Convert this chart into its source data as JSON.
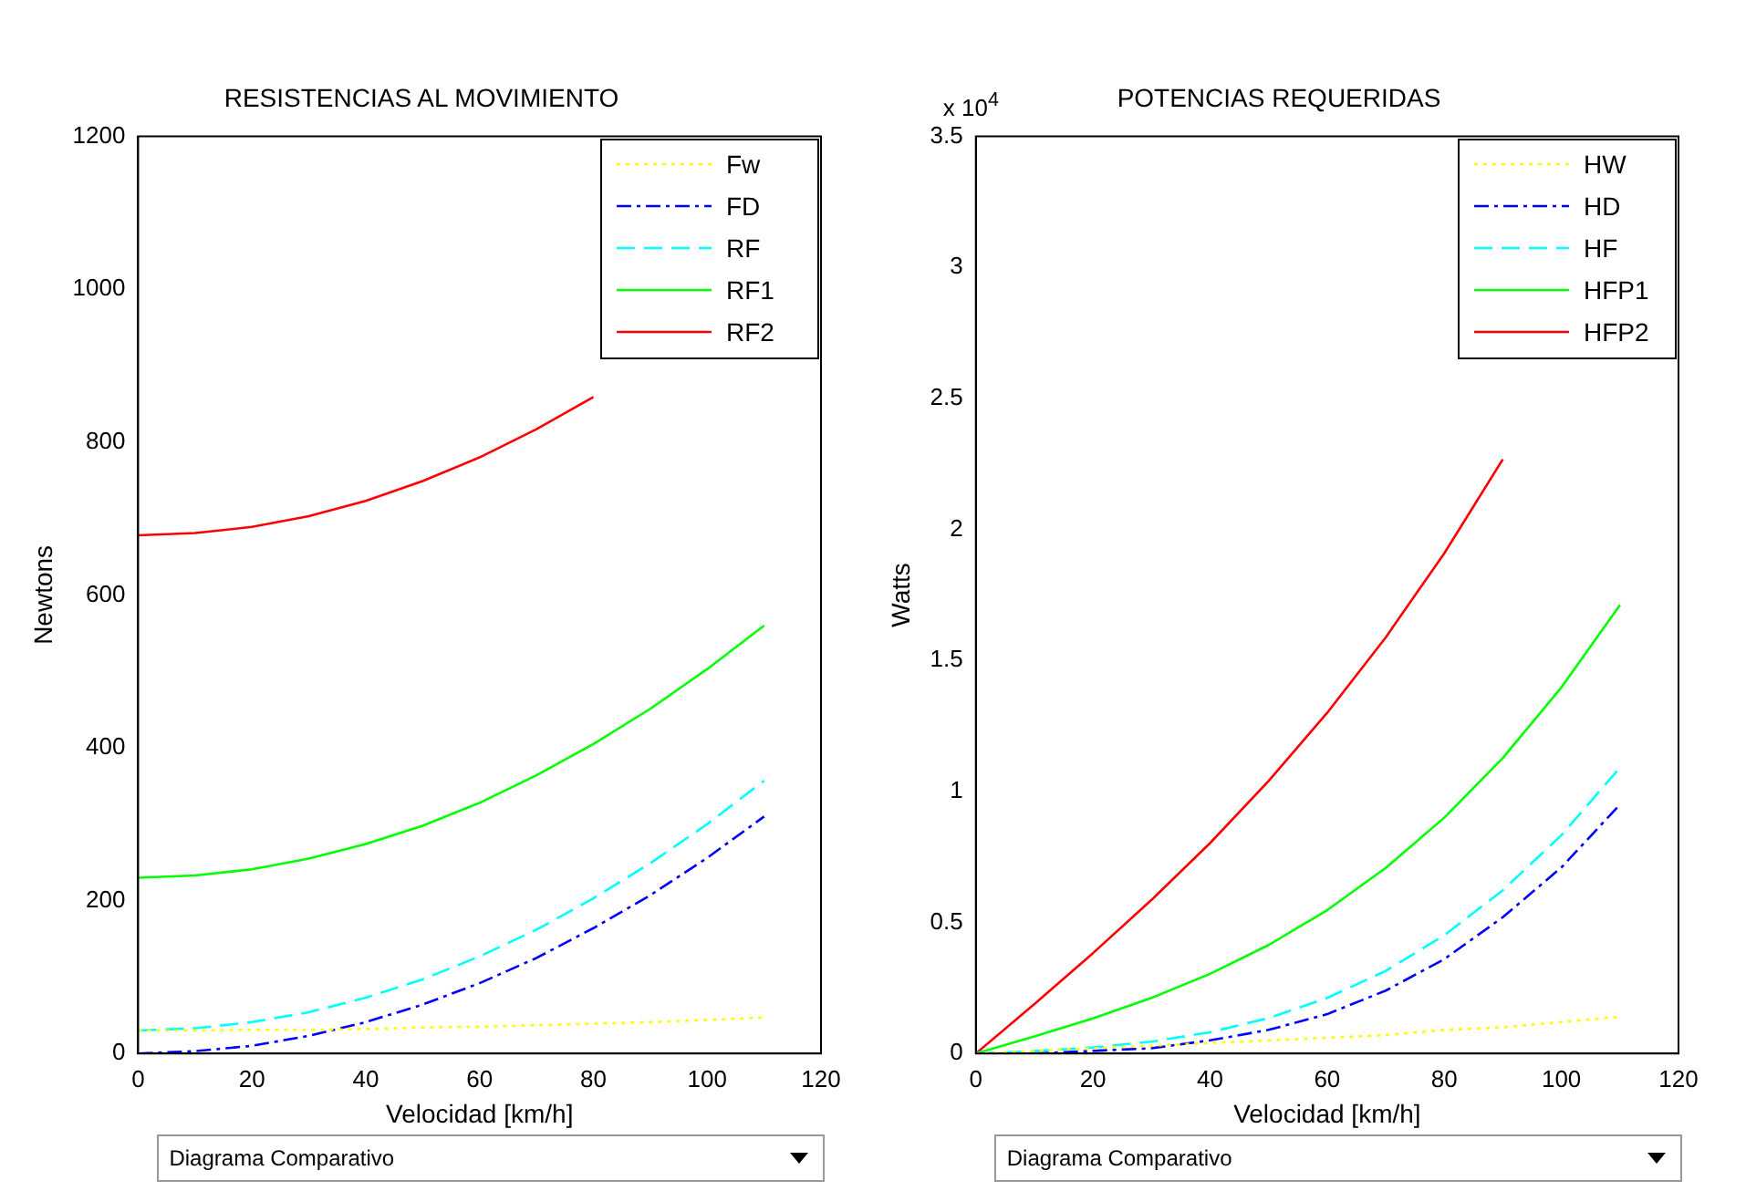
{
  "chart_data": [
    {
      "type": "line",
      "title": "RESISTENCIAS AL MOVIMIENTO",
      "xlabel": "Velocidad [km/h]",
      "ylabel": "Newtons",
      "x": [
        0,
        10,
        20,
        30,
        40,
        50,
        60,
        70,
        80,
        90,
        100,
        110
      ],
      "series": [
        {
          "name": "Fw",
          "color": "#ffff00",
          "line_style": "dotted",
          "values": [
            30,
            30,
            31,
            31,
            32,
            34,
            35,
            37,
            39,
            41,
            44,
            47
          ]
        },
        {
          "name": "FD",
          "color": "#0000ff",
          "line_style": "dashdot",
          "values": [
            0,
            3,
            10,
            23,
            41,
            64,
            92,
            125,
            164,
            207,
            256,
            310
          ]
        },
        {
          "name": "RF",
          "color": "#00ffff",
          "line_style": "dashed",
          "values": [
            30,
            33,
            41,
            54,
            73,
            97,
            127,
            162,
            203,
            249,
            300,
            357
          ]
        },
        {
          "name": "RF1",
          "color": "#00ff00",
          "line_style": "solid",
          "values": [
            230,
            233,
            241,
            255,
            274,
            298,
            328,
            364,
            405,
            451,
            503,
            560
          ]
        },
        {
          "name": "RF2",
          "color": "#ff0000",
          "line_style": "solid",
          "values": [
            678,
            681,
            689,
            703,
            723,
            749,
            780,
            817,
            859,
            null,
            null,
            null
          ]
        }
      ],
      "xlim": [
        0,
        120
      ],
      "xticks": [
        0,
        20,
        40,
        60,
        80,
        100,
        120
      ],
      "ylim": [
        0,
        1200
      ],
      "yticks": [
        0,
        200,
        400,
        600,
        800,
        1000,
        1200
      ],
      "grid": false,
      "legend": "top right",
      "marker": "none",
      "annotations": [
        "Diagrama Comparativo"
      ]
    },
    {
      "type": "line",
      "title": "POTENCIAS REQUERIDAS",
      "xlabel": "Velocidad [km/h]",
      "ylabel": "Watts",
      "x": [
        0,
        10,
        20,
        30,
        40,
        50,
        60,
        70,
        80,
        90,
        100,
        110
      ],
      "series": [
        {
          "name": "HW",
          "color": "#ffff00",
          "line_style": "dotted",
          "values": [
            0,
            0.01,
            0.02,
            0.03,
            0.04,
            0.05,
            0.06,
            0.07,
            0.09,
            0.1,
            0.12,
            0.14
          ]
        },
        {
          "name": "HD",
          "color": "#0000ff",
          "line_style": "dashdot",
          "values": [
            0,
            0,
            0.01,
            0.02,
            0.05,
            0.09,
            0.15,
            0.24,
            0.36,
            0.52,
            0.71,
            0.95
          ]
        },
        {
          "name": "HF",
          "color": "#00ffff",
          "line_style": "dashed",
          "values": [
            0,
            0.009,
            0.023,
            0.045,
            0.081,
            0.135,
            0.212,
            0.315,
            0.451,
            0.623,
            0.833,
            1.091
          ]
        },
        {
          "name": "HFP1",
          "color": "#00ff00",
          "line_style": "solid",
          "values": [
            0,
            0.065,
            0.134,
            0.212,
            0.304,
            0.414,
            0.547,
            0.708,
            0.9,
            1.128,
            1.397,
            1.711
          ]
        },
        {
          "name": "HFP2",
          "color": "#ff0000",
          "line_style": "solid",
          "values": [
            0,
            0.189,
            0.383,
            0.586,
            0.803,
            1.04,
            1.3,
            1.588,
            1.909,
            2.268,
            null,
            null
          ]
        }
      ],
      "xlim": [
        0,
        120
      ],
      "xticks": [
        0,
        20,
        40,
        60,
        80,
        100,
        120
      ],
      "ylim": [
        0,
        3.5
      ],
      "yticks": [
        0,
        0.5,
        1,
        1.5,
        2,
        2.5,
        3,
        3.5
      ],
      "grid": false,
      "legend": "top right",
      "marker": "none",
      "annotations": [
        "x 10$^{4}$",
        "Diagrama Comparativo"
      ]
    }
  ]
}
